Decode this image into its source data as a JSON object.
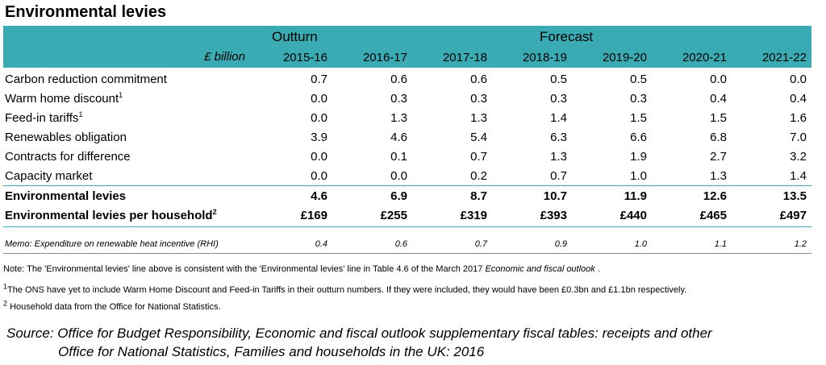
{
  "title": "Environmental levies",
  "header": {
    "outturn_label": "Outturn",
    "forecast_label": "Forecast",
    "unit_label": "£ billion",
    "years": [
      "2015-16",
      "2016-17",
      "2017-18",
      "2018-19",
      "2019-20",
      "2020-21",
      "2021-22"
    ]
  },
  "rows": [
    {
      "label": "Carbon reduction commitment",
      "sup": "",
      "values": [
        "0.7",
        "0.6",
        "0.6",
        "0.5",
        "0.5",
        "0.0",
        "0.0"
      ]
    },
    {
      "label": "Warm home discount",
      "sup": "1",
      "values": [
        "0.0",
        "0.3",
        "0.3",
        "0.3",
        "0.3",
        "0.4",
        "0.4"
      ]
    },
    {
      "label": "Feed-in tariffs",
      "sup": "1",
      "values": [
        "0.0",
        "1.3",
        "1.3",
        "1.4",
        "1.5",
        "1.5",
        "1.6"
      ]
    },
    {
      "label": "Renewables obligation",
      "sup": "",
      "values": [
        "3.9",
        "4.6",
        "5.4",
        "6.3",
        "6.6",
        "6.8",
        "7.0"
      ]
    },
    {
      "label": "Contracts for difference",
      "sup": "",
      "values": [
        "0.0",
        "0.1",
        "0.7",
        "1.3",
        "1.9",
        "2.7",
        "3.2"
      ]
    },
    {
      "label": "Capacity market",
      "sup": "",
      "values": [
        "0.0",
        "0.0",
        "0.2",
        "0.7",
        "1.0",
        "1.3",
        "1.4"
      ]
    }
  ],
  "totals": [
    {
      "label": "Environmental levies",
      "sup": "",
      "values": [
        "4.6",
        "6.9",
        "8.7",
        "10.7",
        "11.9",
        "12.6",
        "13.5"
      ]
    },
    {
      "label": "Environmental levies per household",
      "sup": "2",
      "values": [
        "£169",
        "£255",
        "£319",
        "£393",
        "£440",
        "£465",
        "£497"
      ]
    }
  ],
  "memo": {
    "label": "Memo: Expenditure on renewable heat incentive (RHI)",
    "values": [
      "0.4",
      "0.6",
      "0.7",
      "0.9",
      "1.0",
      "1.1",
      "1.2"
    ]
  },
  "notes": {
    "note_main_pre": "Note: The 'Environmental levies' line above is consistent with the 'Environmental levies' line in Table 4.6 of the March 2017 ",
    "note_main_italic": "Economic and fiscal outlook",
    "note_main_post": " .",
    "note1_sup": "1",
    "note1_text": "The ONS have yet to include Warm Home Discount and Feed-in Tariffs in their outturn numbers. If they were included, they would have been £0.3bn and £1.1bn respectively.",
    "note2_sup": "2",
    "note2_text": " Household data from the Office for National Statistics."
  },
  "source": {
    "line1": "Source: Office for Budget Responsibility, Economic and fiscal outlook supplementary fiscal tables: receipts and other",
    "line2": "Office for National Statistics, Families and households in the UK: 2016"
  },
  "colors": {
    "header_bg": "#3aabb3"
  }
}
